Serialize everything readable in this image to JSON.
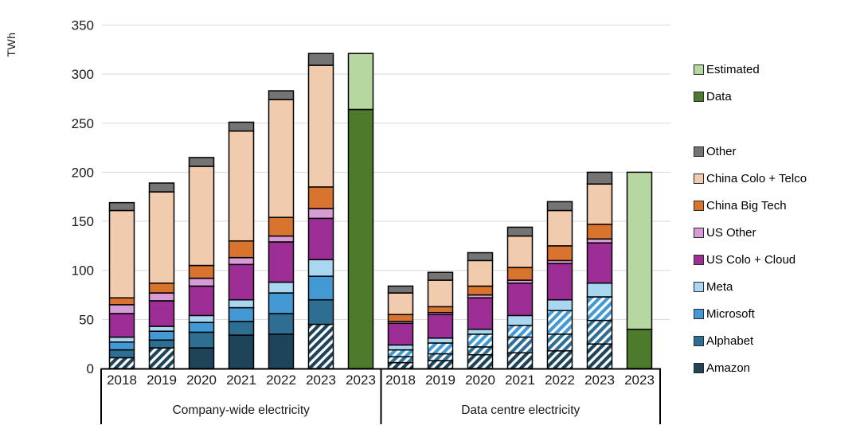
{
  "chart_data": {
    "type": "bar",
    "stacked": true,
    "ylabel": "TWh",
    "ylim": [
      0,
      350
    ],
    "yticks": [
      0,
      50,
      100,
      150,
      200,
      250,
      300,
      350
    ],
    "grid": true,
    "legend_position": "right",
    "categories": [
      "2018",
      "2019",
      "2020",
      "2021",
      "2022",
      "2023"
    ],
    "estimate_category": "2023",
    "groups": [
      {
        "label": "Company-wide electricity"
      },
      {
        "label": "Data centre electricity"
      }
    ],
    "series": [
      {
        "name": "Amazon",
        "color": "#1E4459",
        "company_wide": [
          11,
          21,
          21,
          34,
          35,
          45
        ],
        "company_wide_hatched": [
          1,
          1,
          0,
          0,
          0,
          1
        ],
        "data_centre": [
          6,
          8,
          14,
          16,
          18,
          25
        ],
        "data_centre_hatched": [
          1,
          1,
          1,
          1,
          1,
          1
        ]
      },
      {
        "name": "Alphabet",
        "color": "#2F6E93",
        "company_wide": [
          8,
          8,
          16,
          14,
          21,
          25
        ],
        "company_wide_hatched": [
          0,
          0,
          0,
          0,
          0,
          0
        ],
        "data_centre": [
          6,
          7,
          8,
          16,
          17,
          24
        ],
        "data_centre_hatched": [
          1,
          1,
          1,
          1,
          1,
          1
        ]
      },
      {
        "name": "Microsoft",
        "color": "#4299D3",
        "company_wide": [
          8,
          9,
          10,
          14,
          21,
          24
        ],
        "company_wide_hatched": [
          0,
          0,
          0,
          0,
          0,
          0
        ],
        "data_centre": [
          7,
          11,
          13,
          12,
          24,
          24
        ],
        "data_centre_hatched": [
          1,
          1,
          1,
          1,
          1,
          1
        ]
      },
      {
        "name": "Meta",
        "color": "#A9D7F2",
        "company_wide": [
          5,
          5,
          7,
          8,
          11,
          17
        ],
        "company_wide_hatched": [
          0,
          0,
          0,
          0,
          0,
          0
        ],
        "data_centre": [
          5,
          5,
          5,
          10,
          11,
          14
        ],
        "data_centre_hatched": [
          0,
          0,
          0,
          0,
          0,
          0
        ]
      },
      {
        "name": "US Colo + Cloud",
        "color": "#9C2E96",
        "company_wide": [
          24,
          26,
          30,
          36,
          41,
          42
        ],
        "company_wide_hatched": [
          0,
          0,
          0,
          0,
          0,
          0
        ],
        "data_centre": [
          22,
          24,
          32,
          33,
          37,
          41
        ],
        "data_centre_hatched": [
          0,
          0,
          0,
          0,
          0,
          0
        ]
      },
      {
        "name": "US Other",
        "color": "#D79BD5",
        "company_wide": [
          9,
          8,
          8,
          7,
          6,
          10
        ],
        "company_wide_hatched": [
          0,
          0,
          0,
          0,
          0,
          0
        ],
        "data_centre": [
          2,
          2,
          3,
          3,
          3,
          4
        ],
        "data_centre_hatched": [
          0,
          0,
          0,
          0,
          0,
          0
        ]
      },
      {
        "name": "China Big Tech",
        "color": "#D9742F",
        "company_wide": [
          7,
          10,
          13,
          17,
          19,
          22
        ],
        "company_wide_hatched": [
          0,
          0,
          0,
          0,
          0,
          0
        ],
        "data_centre": [
          7,
          6,
          9,
          13,
          15,
          15
        ],
        "data_centre_hatched": [
          0,
          0,
          0,
          0,
          0,
          0
        ]
      },
      {
        "name": "China Colo + Telco",
        "color": "#F1CBAD",
        "company_wide": [
          89,
          93,
          101,
          112,
          120,
          124
        ],
        "company_wide_hatched": [
          0,
          0,
          0,
          0,
          0,
          0
        ],
        "data_centre": [
          22,
          27,
          26,
          32,
          36,
          41
        ],
        "data_centre_hatched": [
          0,
          0,
          0,
          0,
          0,
          0
        ]
      },
      {
        "name": "Other",
        "color": "#747474",
        "company_wide": [
          8,
          9,
          9,
          9,
          9,
          12
        ],
        "company_wide_hatched": [
          0,
          0,
          0,
          0,
          0,
          0
        ],
        "data_centre": [
          7,
          8,
          8,
          9,
          9,
          12
        ],
        "data_centre_hatched": [
          0,
          0,
          0,
          0,
          0,
          0
        ]
      }
    ],
    "totals": {
      "company_wide": [
        169,
        189,
        215,
        251,
        283,
        321
      ],
      "data_centre": [
        84,
        98,
        118,
        144,
        170,
        200
      ]
    },
    "estimated_bars": [
      {
        "group_index": 0,
        "label": "2023",
        "data": 264,
        "estimated": 57
      },
      {
        "group_index": 1,
        "label": "2023",
        "data": 40,
        "estimated": 160
      }
    ],
    "estimate_colors": {
      "data": "#4E7A2B",
      "estimated": "#B7D7A0"
    },
    "legend": [
      {
        "label": "Estimated",
        "color": "#B7D7A0"
      },
      {
        "label": "Data",
        "color": "#4E7A2B"
      },
      {
        "label": "Other",
        "color": "#747474",
        "gap_before": true
      },
      {
        "label": "China Colo + Telco",
        "color": "#F1CBAD"
      },
      {
        "label": "China Big Tech",
        "color": "#D9742F"
      },
      {
        "label": "US Other",
        "color": "#D79BD5"
      },
      {
        "label": "US Colo + Cloud",
        "color": "#9C2E96"
      },
      {
        "label": "Meta",
        "color": "#A9D7F2"
      },
      {
        "label": "Microsoft",
        "color": "#4299D3"
      },
      {
        "label": "Alphabet",
        "color": "#2F6E93"
      },
      {
        "label": "Amazon",
        "color": "#1E4459"
      }
    ],
    "grid_color": "#D9D9D9",
    "axis_color": "#000000"
  }
}
